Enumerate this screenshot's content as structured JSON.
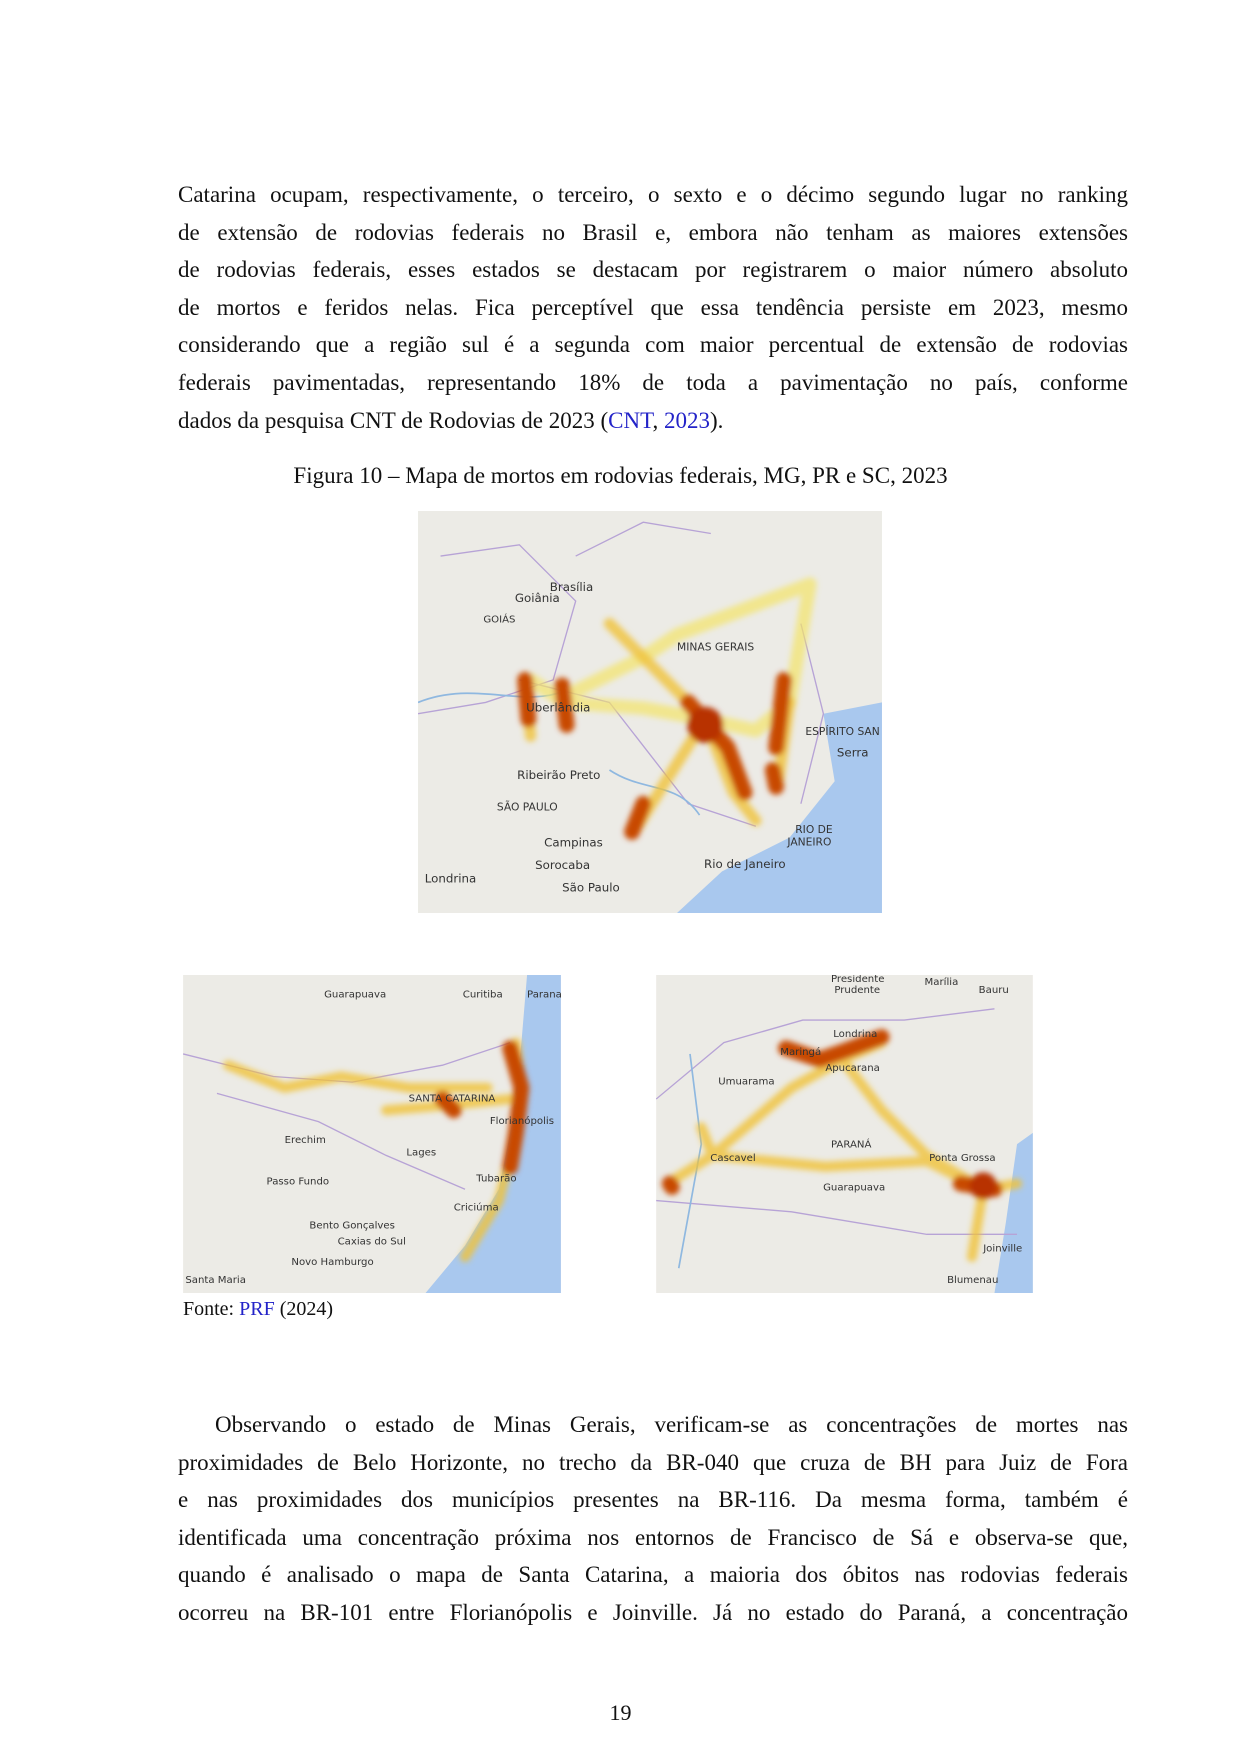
{
  "paragraph1": {
    "lines": [
      "Catarina ocupam, respectivamente, o terceiro, o sexto e o décimo segundo lugar no ranking",
      "de extensão de rodovias federais no Brasil e, embora não tenham as maiores extensões",
      "de rodovias federais, esses estados se destacam por registrarem o maior número absoluto",
      "de mortos e feridos nelas. Fica perceptível que essa tendência persiste em 2023, mesmo",
      "considerando que a região sul é a segunda com maior percentual de extensão de rodovias",
      "federais pavimentadas, representando 18% de toda a pavimentação no país, conforme"
    ],
    "last_line": {
      "before": "dados da pesquisa CNT de Rodovias de 2023 (",
      "link1": "CNT",
      "sep": ", ",
      "link2": "2023",
      "after": ")."
    }
  },
  "figure": {
    "caption": "Figura 10 – Mapa de mortos em rodovias federais, MG, PR e SC, 2023",
    "map_mg": {
      "labels": [
        "Brasília",
        "Goiânia",
        "GOIÁS",
        "MINAS GERAIS",
        "Uberlândia",
        "ESPÍRITO SAN",
        "Serra",
        "Ribeirão Preto",
        "SÃO PAULO",
        "Campinas",
        "RIO DE",
        "JANEIRO",
        "Rio de Janeiro",
        "Sorocaba",
        "Londrina",
        "São Paulo"
      ]
    },
    "map_sc": {
      "labels": [
        "Guarapuava",
        "Curitiba",
        "Parana",
        "SANTA CATARINA",
        "Florianópolis",
        "Erechim",
        "Lages",
        "Passo Fundo",
        "Tubarão",
        "Criciúma",
        "Bento Gonçalves",
        "Caxias do Sul",
        "Novo Hamburgo",
        "Santa Maria"
      ]
    },
    "map_pr": {
      "labels": [
        "Presidente",
        "Prudente",
        "Marília",
        "Bauru",
        "Londrina",
        "Maringá",
        "Apucarana",
        "Umuarama",
        "PARANÁ",
        "Cascavel",
        "Ponta Grossa",
        "Guarapuava",
        "Joinville",
        "Blumenau"
      ]
    },
    "source": {
      "prefix": "Fonte: ",
      "link": "PRF",
      "suffix": " (2024)"
    }
  },
  "paragraph2": {
    "lines": [
      "Observando o estado de Minas Gerais, verificam-se as concentrações de mortes nas",
      "proximidades de Belo Horizonte, no trecho da BR-040 que cruza de BH para Juiz de Fora",
      "e nas proximidades dos municípios presentes na BR-116. Da mesma forma, também é",
      "identificada uma concentração próxima nos entornos de Francisco de Sá e observa-se que,",
      "quando é analisado o mapa de Santa Catarina, a maioria dos óbitos nas rodovias federais",
      "ocorreu na BR-101 entre Florianópolis e Joinville. Já no estado do Paraná, a concentração"
    ]
  },
  "page_number": "19"
}
